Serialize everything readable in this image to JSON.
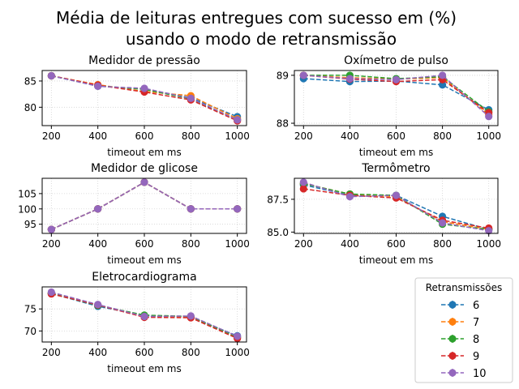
{
  "figure": {
    "title_line1": "Média de leituras entregues com sucesso em (%)",
    "title_line2": "usando o modo de retransmissão"
  },
  "legend": {
    "title": "Retransmissões",
    "entries": [
      "6",
      "7",
      "8",
      "9",
      "10"
    ],
    "colors": [
      "#1f77b4",
      "#ff7f0e",
      "#2ca02c",
      "#d62728",
      "#9467bd"
    ]
  },
  "chart_data": [
    {
      "type": "line",
      "title": "Medidor de pressão",
      "xlabel": "timeout em ms",
      "x": [
        200,
        400,
        600,
        800,
        1000
      ],
      "xticks": [
        "200",
        "400",
        "600",
        "800",
        "1000"
      ],
      "ylim": [
        76.5,
        87
      ],
      "yticks": [
        80,
        85
      ],
      "grid": true,
      "series": [
        {
          "name": "6",
          "values": [
            86.0,
            84.0,
            83.5,
            81.8,
            78.2
          ]
        },
        {
          "name": "7",
          "values": [
            86.0,
            84.3,
            83.0,
            82.2,
            77.8
          ]
        },
        {
          "name": "8",
          "values": [
            86.0,
            84.1,
            83.4,
            81.6,
            77.6
          ]
        },
        {
          "name": "9",
          "values": [
            86.0,
            84.2,
            82.9,
            81.4,
            77.4
          ]
        },
        {
          "name": "10",
          "values": [
            86.0,
            84.0,
            83.6,
            81.7,
            77.6
          ]
        }
      ]
    },
    {
      "type": "line",
      "title": "Oxímetro de pulso",
      "xlabel": "timeout em ms",
      "x": [
        200,
        400,
        600,
        800,
        1000
      ],
      "xticks": [
        "200",
        "400",
        "600",
        "800",
        "1000"
      ],
      "ylim": [
        87.95,
        89.1
      ],
      "yticks": [
        88,
        89
      ],
      "grid": true,
      "series": [
        {
          "name": "6",
          "values": [
            88.93,
            88.87,
            88.88,
            88.8,
            88.28
          ]
        },
        {
          "name": "7",
          "values": [
            89.0,
            88.95,
            88.92,
            88.95,
            88.18
          ]
        },
        {
          "name": "8",
          "values": [
            89.0,
            89.0,
            88.93,
            88.97,
            88.24
          ]
        },
        {
          "name": "9",
          "values": [
            89.0,
            88.92,
            88.87,
            88.91,
            88.22
          ]
        },
        {
          "name": "10",
          "values": [
            89.0,
            88.93,
            88.91,
            89.0,
            88.14
          ]
        }
      ]
    },
    {
      "type": "line",
      "title": "Medidor de glicose",
      "xlabel": "timeout em ms",
      "x": [
        200,
        400,
        600,
        800,
        1000
      ],
      "xticks": [
        "200",
        "400",
        "600",
        "800",
        "1000"
      ],
      "ylim": [
        92,
        110
      ],
      "yticks": [
        95,
        100,
        105
      ],
      "grid": true,
      "series": [
        {
          "name": "6",
          "values": [
            93.3,
            100.0,
            108.7,
            100.0,
            100.0
          ]
        },
        {
          "name": "7",
          "values": [
            93.3,
            100.0,
            108.7,
            100.0,
            100.0
          ]
        },
        {
          "name": "8",
          "values": [
            93.3,
            100.0,
            108.7,
            100.0,
            100.0
          ]
        },
        {
          "name": "9",
          "values": [
            93.3,
            100.0,
            108.7,
            100.0,
            100.0
          ]
        },
        {
          "name": "10",
          "values": [
            93.3,
            100.0,
            108.7,
            100.0,
            100.0
          ]
        }
      ]
    },
    {
      "type": "line",
      "title": "Termômetro",
      "xlabel": "timeout em ms",
      "x": [
        200,
        400,
        600,
        800,
        1000
      ],
      "xticks": [
        "200",
        "400",
        "600",
        "800",
        "1000"
      ],
      "ylim": [
        84.9,
        89.1
      ],
      "yticks": [
        85.0,
        87.5
      ],
      "ytick_labels": [
        "85.0",
        "87.5"
      ],
      "grid": true,
      "series": [
        {
          "name": "6",
          "values": [
            88.6,
            87.8,
            87.8,
            86.2,
            85.2
          ]
        },
        {
          "name": "7",
          "values": [
            88.7,
            87.9,
            87.7,
            85.8,
            85.2
          ]
        },
        {
          "name": "8",
          "values": [
            88.7,
            87.9,
            87.8,
            85.6,
            85.2
          ]
        },
        {
          "name": "9",
          "values": [
            88.3,
            87.8,
            87.6,
            85.9,
            85.3
          ]
        },
        {
          "name": "10",
          "values": [
            88.8,
            87.7,
            87.8,
            85.7,
            85.1
          ]
        }
      ]
    },
    {
      "type": "line",
      "title": "Eletrocardiograma",
      "xlabel": "timeout em ms",
      "x": [
        200,
        400,
        600,
        800,
        1000
      ],
      "xticks": [
        "200",
        "400",
        "600",
        "800",
        "1000"
      ],
      "ylim": [
        67.5,
        80
      ],
      "yticks": [
        70,
        75
      ],
      "grid": true,
      "series": [
        {
          "name": "6",
          "values": [
            78.5,
            75.6,
            73.5,
            73.1,
            68.9
          ]
        },
        {
          "name": "7",
          "values": [
            78.5,
            75.9,
            73.2,
            73.2,
            68.5
          ]
        },
        {
          "name": "8",
          "values": [
            78.5,
            75.8,
            73.6,
            73.3,
            68.6
          ]
        },
        {
          "name": "9",
          "values": [
            78.4,
            75.9,
            73.1,
            73.0,
            68.3
          ]
        },
        {
          "name": "10",
          "values": [
            78.8,
            76.0,
            73.3,
            73.4,
            68.8
          ]
        }
      ]
    }
  ]
}
